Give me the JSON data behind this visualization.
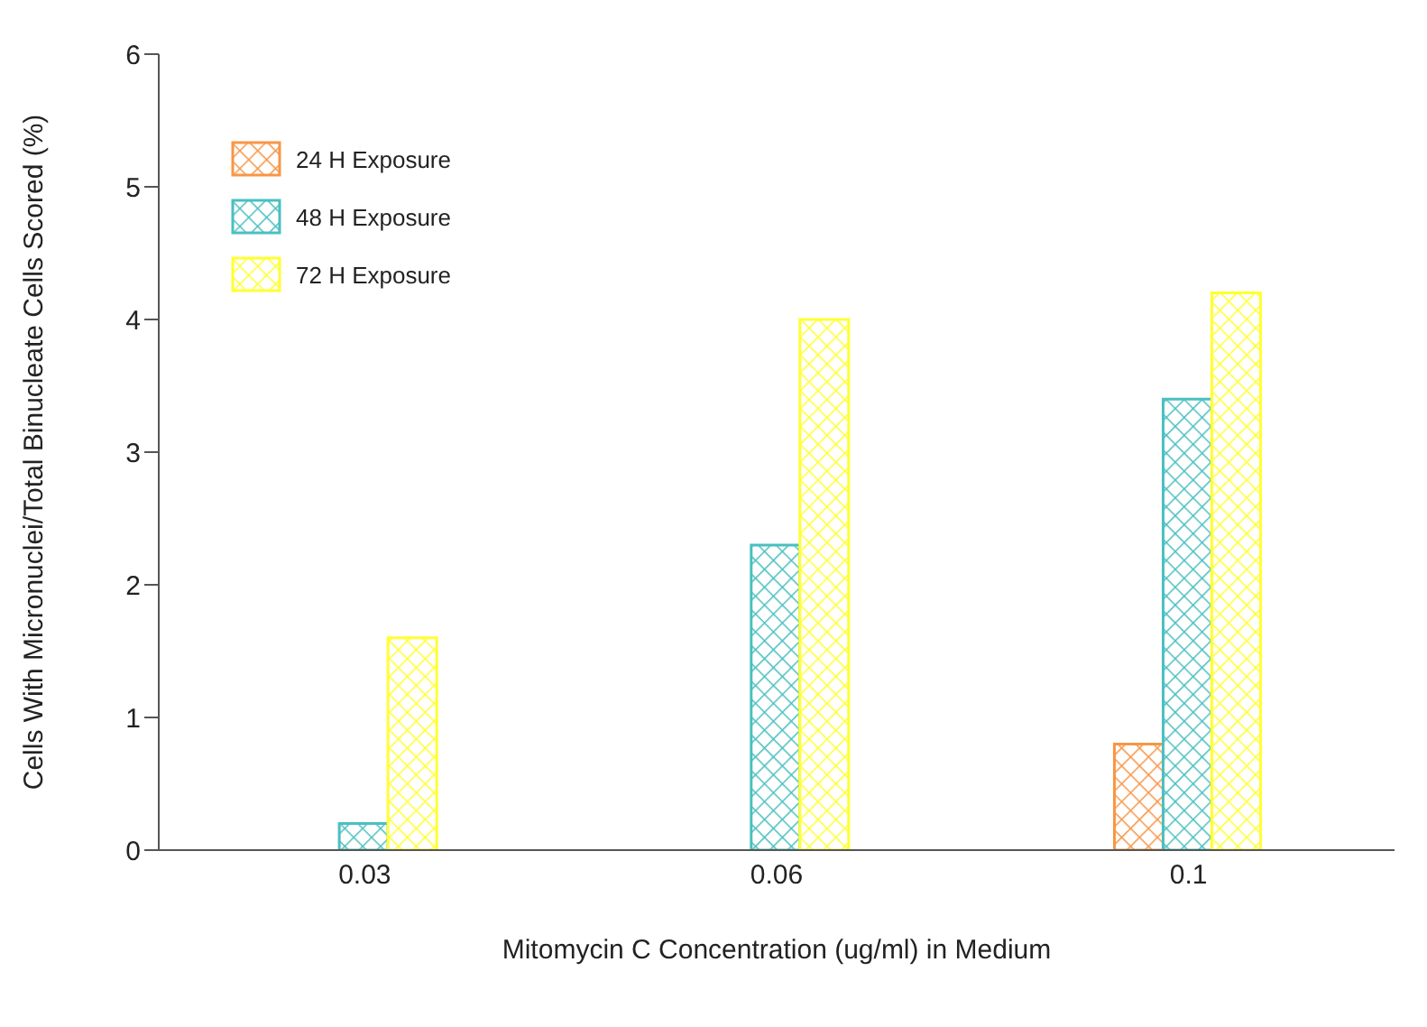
{
  "chart_data": {
    "type": "bar",
    "xlabel": "Mitomycin C Concentration (ug/ml) in Medium",
    "ylabel": "Cells With Micronuclei/Total Binucleate Cells Scored (%)",
    "categories": [
      "0.03",
      "0.06",
      "0.1"
    ],
    "series": [
      {
        "name": "24 H Exposure",
        "color": "#f79646",
        "values": [
          null,
          null,
          0.8
        ]
      },
      {
        "name": "48 H Exposure",
        "color": "#4bbfc0",
        "values": [
          0.2,
          2.3,
          3.4
        ]
      },
      {
        "name": "72 H Exposure",
        "color": "#ffff33",
        "values": [
          1.6,
          4.0,
          4.2
        ]
      }
    ],
    "ylim": [
      0,
      6
    ],
    "yticks": [
      0,
      1,
      2,
      3,
      4,
      5,
      6
    ],
    "grid": false,
    "legend": "top left"
  }
}
